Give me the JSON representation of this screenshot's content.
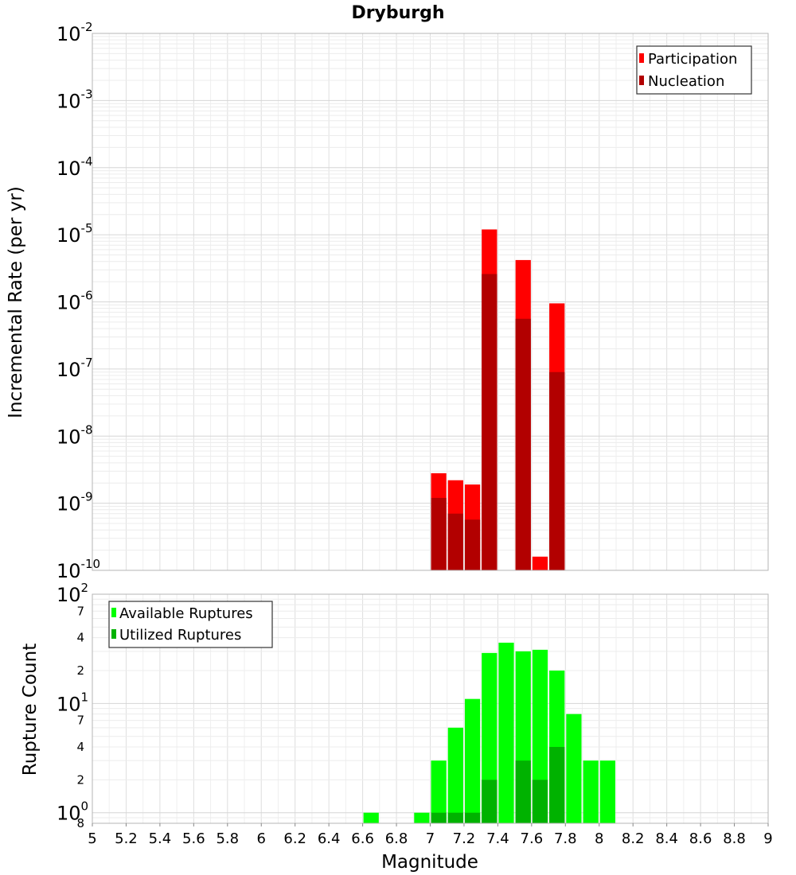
{
  "chart_data": [
    {
      "type": "bar",
      "title": "Dryburgh",
      "xlabel": "Magnitude",
      "ylabel": "Incremental Rate (per yr)",
      "yscale": "log",
      "ylim": [
        1e-10,
        0.01
      ],
      "xlim": [
        5,
        9
      ],
      "grid": true,
      "legend_position": "top-right",
      "y_ticks": [
        {
          "base": "10",
          "exp": "-2",
          "value": 0.01
        },
        {
          "base": "10",
          "exp": "-3",
          "value": 0.001
        },
        {
          "base": "10",
          "exp": "-4",
          "value": 0.0001
        },
        {
          "base": "10",
          "exp": "-5",
          "value": 1e-05
        },
        {
          "base": "10",
          "exp": "-6",
          "value": 1e-06
        },
        {
          "base": "10",
          "exp": "-7",
          "value": 1e-07
        },
        {
          "base": "10",
          "exp": "-8",
          "value": 1e-08
        },
        {
          "base": "10",
          "exp": "-9",
          "value": 1e-09
        },
        {
          "base": "10",
          "exp": "-10",
          "value": 1e-10
        }
      ],
      "series": [
        {
          "name": "Participation",
          "color": "#ff0000",
          "points": [
            {
              "x": 7.05,
              "y": 2.8e-09
            },
            {
              "x": 7.15,
              "y": 2.2e-09
            },
            {
              "x": 7.25,
              "y": 1.9e-09
            },
            {
              "x": 7.35,
              "y": 1.2e-05
            },
            {
              "x": 7.55,
              "y": 4.2e-06
            },
            {
              "x": 7.65,
              "y": 1.6e-10
            },
            {
              "x": 7.75,
              "y": 9.5e-07
            }
          ]
        },
        {
          "name": "Nucleation",
          "color": "#b20000",
          "points": [
            {
              "x": 7.05,
              "y": 1.2e-09
            },
            {
              "x": 7.15,
              "y": 7e-10
            },
            {
              "x": 7.25,
              "y": 5.7e-10
            },
            {
              "x": 7.35,
              "y": 2.6e-06
            },
            {
              "x": 7.55,
              "y": 5.6e-07
            },
            {
              "x": 7.75,
              "y": 9e-08
            }
          ]
        }
      ]
    },
    {
      "type": "bar",
      "xlabel": "Magnitude",
      "ylabel": "Rupture Count",
      "yscale": "log",
      "ylim": [
        0.8,
        100
      ],
      "xlim": [
        5,
        9
      ],
      "grid": true,
      "legend_position": "top-left",
      "x_ticks": [
        "5",
        "5.2",
        "5.4",
        "5.6",
        "5.8",
        "6",
        "6.2",
        "6.4",
        "6.6",
        "6.8",
        "7",
        "7.2",
        "7.4",
        "7.6",
        "7.8",
        "8",
        "8.2",
        "8.4",
        "8.6",
        "8.8",
        "9"
      ],
      "y_ticks": [
        {
          "base": "10",
          "exp": "2",
          "value": 100
        },
        {
          "label": "7",
          "value": 70
        },
        {
          "label": "4",
          "value": 40
        },
        {
          "label": "2",
          "value": 20
        },
        {
          "base": "10",
          "exp": "1",
          "value": 10
        },
        {
          "label": "7",
          "value": 7
        },
        {
          "label": "4",
          "value": 4
        },
        {
          "label": "2",
          "value": 2
        },
        {
          "base": "10",
          "exp": "0",
          "value": 1
        },
        {
          "label": "8",
          "value": 0.8
        }
      ],
      "series": [
        {
          "name": "Available Ruptures",
          "color": "#00ff00",
          "points": [
            {
              "x": 6.65,
              "y": 1
            },
            {
              "x": 6.95,
              "y": 1
            },
            {
              "x": 7.05,
              "y": 3
            },
            {
              "x": 7.15,
              "y": 6
            },
            {
              "x": 7.25,
              "y": 11
            },
            {
              "x": 7.35,
              "y": 29
            },
            {
              "x": 7.45,
              "y": 36
            },
            {
              "x": 7.55,
              "y": 30
            },
            {
              "x": 7.65,
              "y": 31
            },
            {
              "x": 7.75,
              "y": 20
            },
            {
              "x": 7.85,
              "y": 8
            },
            {
              "x": 7.95,
              "y": 3
            },
            {
              "x": 8.05,
              "y": 3
            }
          ]
        },
        {
          "name": "Utilized Ruptures",
          "color": "#00b200",
          "points": [
            {
              "x": 7.05,
              "y": 1
            },
            {
              "x": 7.15,
              "y": 1
            },
            {
              "x": 7.25,
              "y": 1
            },
            {
              "x": 7.35,
              "y": 2
            },
            {
              "x": 7.55,
              "y": 3
            },
            {
              "x": 7.65,
              "y": 2
            },
            {
              "x": 7.75,
              "y": 4
            }
          ]
        }
      ]
    }
  ]
}
